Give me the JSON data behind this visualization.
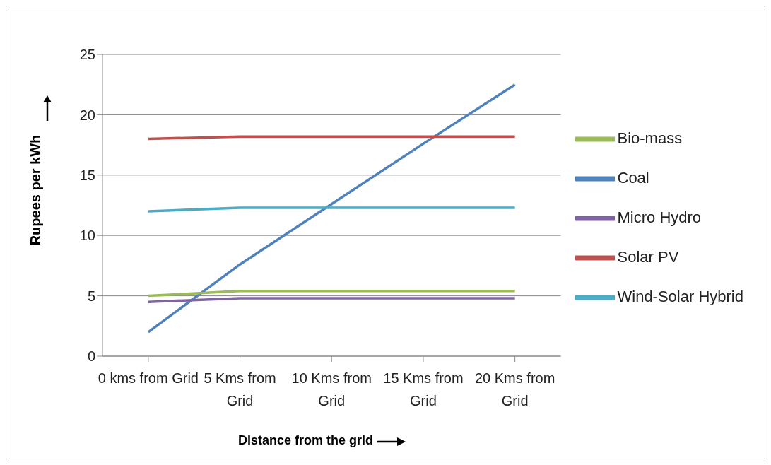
{
  "chart_data": {
    "type": "line",
    "xlabel": "Distance from the grid",
    "ylabel": "Rupees per kWh",
    "categories": [
      "0 kms from Grid",
      "5 Kms from Grid",
      "10 Kms from Grid",
      "15 Kms from Grid",
      "20 Kms from Grid"
    ],
    "series": [
      {
        "name": "Coal",
        "color": "#4f81bd",
        "values": [
          2,
          7.6,
          12.6,
          17.6,
          22.5
        ]
      },
      {
        "name": "Solar PV",
        "color": "#c0504d",
        "values": [
          18,
          18.2,
          18.2,
          18.2,
          18.2
        ]
      },
      {
        "name": "Bio-mass",
        "color": "#9bbb59",
        "values": [
          5,
          5.4,
          5.4,
          5.4,
          5.4
        ]
      },
      {
        "name": "Micro Hydro",
        "color": "#8064a2",
        "values": [
          4.5,
          4.8,
          4.8,
          4.8,
          4.8
        ]
      },
      {
        "name": "Wind-Solar Hybrid",
        "color": "#4bacc6",
        "values": [
          12,
          12.3,
          12.3,
          12.3,
          12.3
        ]
      }
    ],
    "ylim": [
      0,
      25
    ],
    "yticks": [
      0,
      5,
      10,
      15,
      20,
      25
    ],
    "grid": "y",
    "legend": "right",
    "marker": "none",
    "line_style": "solid"
  }
}
